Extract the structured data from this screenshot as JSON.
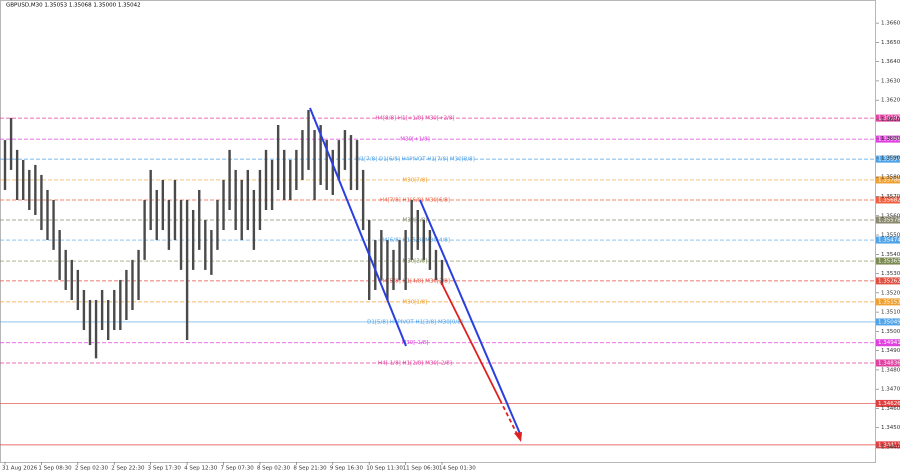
{
  "chart_data": {
    "type": "range-bar",
    "title": "GBPUSD,M30 1.35053 1.35068 1.35000 1.35042",
    "color": "#4a4a4a",
    "ylim": [
      1.34322,
      1.3672
    ],
    "yticks": [
      {
        "value": 1.344,
        "label": "1.34400"
      },
      {
        "value": 1.345,
        "label": "1.34500"
      },
      {
        "value": 1.346,
        "label": "1.34600"
      },
      {
        "value": 1.347,
        "label": "1.34700"
      },
      {
        "value": 1.348,
        "label": "1.34800"
      },
      {
        "value": 1.349,
        "label": "1.34900"
      },
      {
        "value": 1.35,
        "label": "1.35000"
      },
      {
        "value": 1.351,
        "label": "1.35100"
      },
      {
        "value": 1.352,
        "label": "1.35200"
      },
      {
        "value": 1.353,
        "label": "1.35300"
      },
      {
        "value": 1.354,
        "label": "1.35400"
      },
      {
        "value": 1.355,
        "label": "1.35500"
      },
      {
        "value": 1.356,
        "label": "1.35600"
      },
      {
        "value": 1.357,
        "label": "1.35700"
      },
      {
        "value": 1.358,
        "label": "1.35800"
      },
      {
        "value": 1.359,
        "label": "1.35900"
      },
      {
        "value": 1.36,
        "label": "1.36000"
      },
      {
        "value": 1.361,
        "label": "1.36100"
      },
      {
        "value": 1.362,
        "label": "1.36200"
      },
      {
        "value": 1.363,
        "label": "1.36300"
      },
      {
        "value": 1.364,
        "label": "1.36400"
      },
      {
        "value": 1.365,
        "label": "1.36500"
      },
      {
        "value": 1.366,
        "label": "1.36600"
      }
    ],
    "categories": [
      "31 Aug 2026",
      null,
      null,
      null,
      null,
      null,
      "1 Sep 08:30",
      null,
      null,
      null,
      null,
      null,
      "2 Sep 02:30",
      null,
      null,
      null,
      null,
      null,
      "2 Sep 22:30",
      null,
      null,
      null,
      null,
      null,
      "3 Sep 17:30",
      null,
      null,
      null,
      null,
      null,
      "4 Sep 12:30",
      null,
      null,
      null,
      null,
      null,
      "7 Sep 07:30",
      null,
      null,
      null,
      null,
      null,
      "8 Sep 02:30",
      null,
      null,
      null,
      null,
      null,
      "8 Sep 21:30",
      null,
      null,
      null,
      null,
      null,
      "9 Sep 16:30",
      null,
      null,
      null,
      null,
      null,
      "10 Sep 11:30",
      null,
      null,
      null,
      null,
      null,
      "11 Sep 06:30",
      null,
      null,
      null,
      null,
      null,
      "14 Sep 01:30"
    ],
    "high": [
      1.35993,
      1.36108,
      1.35942,
      1.3589,
      1.35838,
      1.35864,
      1.35812,
      1.35734,
      1.35682,
      1.35526,
      1.35423,
      1.35371,
      1.35319,
      1.35215,
      1.35163,
      1.35163,
      1.35215,
      1.35163,
      1.35215,
      1.35267,
      1.35319,
      1.35371,
      1.35423,
      1.35682,
      1.35838,
      1.35734,
      1.35786,
      1.35682,
      1.35786,
      1.35682,
      1.35682,
      1.3563,
      1.35734,
      1.35578,
      1.35526,
      1.35682,
      1.35786,
      1.35942,
      1.35838,
      1.35786,
      1.35838,
      1.35734,
      1.35838,
      1.35942,
      1.3589,
      1.36071,
      1.35942,
      1.3589,
      1.35942,
      1.36045,
      1.36149,
      1.36045,
      1.36071,
      1.35993,
      1.35942,
      1.35993,
      1.36045,
      1.36019,
      1.35993,
      1.35838,
      1.35578,
      1.35474,
      1.35526,
      1.35474,
      1.35423,
      1.35474,
      1.35526,
      1.35682,
      1.3563,
      1.35578,
      1.35526,
      1.35423,
      1.35371
    ],
    "low": [
      1.35734,
      1.35838,
      1.35682,
      1.35682,
      1.3563,
      1.35604,
      1.35526,
      1.35474,
      1.35423,
      1.35267,
      1.35215,
      1.35163,
      1.35111,
      1.35007,
      1.34929,
      1.3486,
      1.35007,
      1.34955,
      1.35007,
      1.35007,
      1.35059,
      1.35111,
      1.35163,
      1.35371,
      1.35526,
      1.35474,
      1.35526,
      1.35423,
      1.35474,
      1.35319,
      1.34955,
      1.35319,
      1.35423,
      1.35319,
      1.35293,
      1.35423,
      1.35526,
      1.3563,
      1.35526,
      1.35474,
      1.35526,
      1.35423,
      1.35526,
      1.3563,
      1.3563,
      1.35734,
      1.35682,
      1.35682,
      1.35734,
      1.35786,
      1.35838,
      1.35682,
      1.3576,
      1.35734,
      1.35708,
      1.35786,
      1.35838,
      1.35734,
      1.35734,
      1.35526,
      1.35163,
      1.35215,
      1.35267,
      1.35163,
      1.35215,
      1.35267,
      1.35215,
      1.35371,
      1.35423,
      1.35371,
      1.35319,
      1.35267,
      1.35241
    ],
    "levels": [
      {
        "label": "H4[8/8] H1[+1/8] M30[+2/8]",
        "value": 1.36107,
        "color": "#e0409f",
        "dashed": true
      },
      {
        "label": "M30[+1/8]",
        "value": 1.35998,
        "color": "#e040e0",
        "dashed": true
      },
      {
        "label": "W1[7/8] D1[6/8] H4PIVOT H1[7/8] M30[8/8]",
        "value": 1.35894,
        "color": "#4fa3e8",
        "dashed": true
      },
      {
        "label": "M30[7/8]",
        "value": 1.35786,
        "color": "#f0a030",
        "dashed": true
      },
      {
        "label": "H4[7/8] H1[6/8] M30[6/8]",
        "value": 1.35682,
        "color": "#f06040",
        "dashed": true
      },
      {
        "label": "M30[5/8]",
        "value": 1.35578,
        "color": "#8a8a70",
        "dashed": true
      },
      {
        "label": "H4[6/8] H1[5/8] M30[4/8]",
        "value": 1.35474,
        "color": "#4fa3e8",
        "dashed": true
      },
      {
        "label": "M30[3/8]",
        "value": 1.35365,
        "color": "#7a8a50",
        "dashed": true
      },
      {
        "label": "H4[5/8] H1[4/8] M30[2/8]",
        "value": 1.35262,
        "color": "#e05040",
        "dashed": true
      },
      {
        "label": "M30[1/8]",
        "value": 1.35153,
        "color": "#f0a030",
        "dashed": true
      },
      {
        "label": "D1[5/8] H4PIVOT H1[3/8] M30[0/8]",
        "value": 1.35049,
        "color": "#4fa3e8",
        "dashed": false
      },
      {
        "label": "M30[-1/8]",
        "value": 1.34941,
        "color": "#e040e0",
        "dashed": true
      },
      {
        "label": "H4[-1/8] H1[2/8] M30[-2/8]",
        "value": 1.34836,
        "color": "#e0409f",
        "dashed": true
      },
      {
        "label": null,
        "value": 1.34626,
        "color": "#e04040",
        "dashed": false
      },
      {
        "label": null,
        "value": 1.34411,
        "color": "#e04040",
        "dashed": false
      }
    ]
  }
}
